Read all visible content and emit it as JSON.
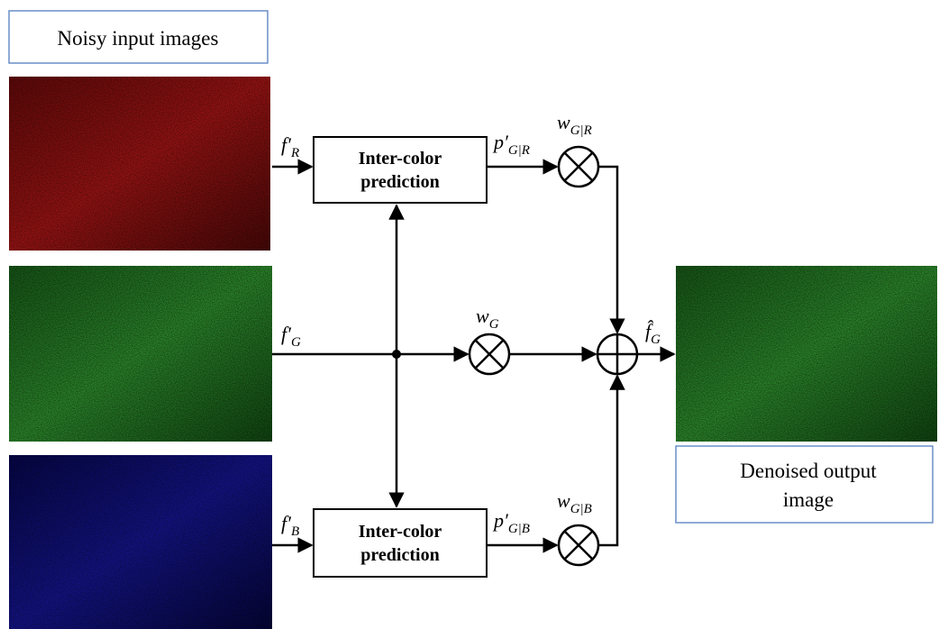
{
  "input_label": "Noisy input images",
  "output_label": {
    "lines": [
      "Denoised output",
      "image"
    ]
  },
  "predictor_top": {
    "lines": [
      "Inter-color",
      "prediction"
    ]
  },
  "predictor_bottom": {
    "lines": [
      "Inter-color",
      "prediction"
    ]
  },
  "signals": {
    "f_R": {
      "main": "f′",
      "sub": "R"
    },
    "f_G": {
      "main": "f′",
      "sub": "G"
    },
    "f_B": {
      "main": "f′",
      "sub": "B"
    },
    "p_GR": {
      "main": "p′",
      "sub": "G|R"
    },
    "p_GB": {
      "main": "p′",
      "sub": "G|B"
    },
    "w_GR": {
      "main": "w",
      "sub": "G|R"
    },
    "w_G": {
      "main": "w",
      "sub": "G"
    },
    "w_GB": {
      "main": "w",
      "sub": "G|B"
    },
    "f_hat_G": {
      "main": "f̂",
      "sub": "G"
    }
  }
}
